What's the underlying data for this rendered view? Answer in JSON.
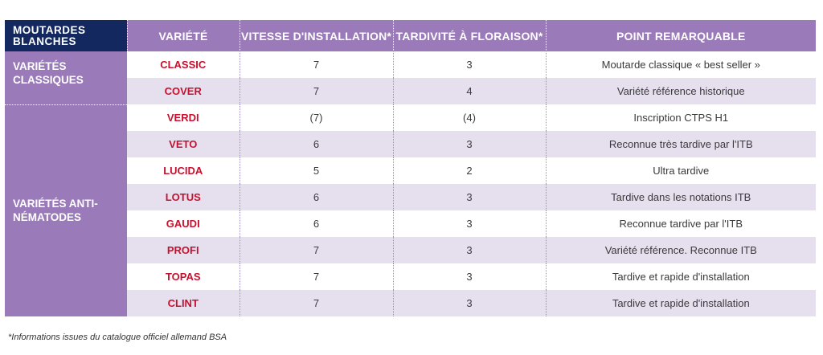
{
  "table": {
    "corner_label": "MOUTARDES BLANCHES",
    "headers": [
      "VARIÉTÉ",
      "VITESSE D'INSTALLATION*",
      "TARDIVITÉ À FLORAISON*",
      "POINT REMARQUABLE"
    ],
    "groups": [
      {
        "label": "VARIÉTÉS CLASSIQUES",
        "rows": [
          {
            "variety": "CLASSIC",
            "vitesse": "7",
            "tardivite": "3",
            "point": "Moutarde classique « best seller »"
          },
          {
            "variety": "COVER",
            "vitesse": "7",
            "tardivite": "4",
            "point": "Variété référence historique"
          }
        ]
      },
      {
        "label": "VARIÉTÉS ANTI-NÉMATODES",
        "rows": [
          {
            "variety": "VERDI",
            "vitesse": "(7)",
            "tardivite": "(4)",
            "point": "Inscription CTPS H1"
          },
          {
            "variety": "VETO",
            "vitesse": "6",
            "tardivite": "3",
            "point": "Reconnue très tardive par l'ITB"
          },
          {
            "variety": "LUCIDA",
            "vitesse": "5",
            "tardivite": "2",
            "point": "Ultra tardive"
          },
          {
            "variety": "LOTUS",
            "vitesse": "6",
            "tardivite": "3",
            "point": "Tardive dans les notations ITB"
          },
          {
            "variety": "GAUDI",
            "vitesse": "6",
            "tardivite": "3",
            "point": "Reconnue tardive par l'ITB"
          },
          {
            "variety": "PROFI",
            "vitesse": "7",
            "tardivite": "3",
            "point": "Variété référence. Reconnue ITB"
          },
          {
            "variety": "TOPAS",
            "vitesse": "7",
            "tardivite": "3",
            "point": "Tardive et rapide d'installation"
          },
          {
            "variety": "CLINT",
            "vitesse": "7",
            "tardivite": "3",
            "point": "Tardive et rapide d'installation"
          }
        ]
      }
    ]
  },
  "footnote": "*Informations issues du catalogue officiel allemand BSA",
  "colors": {
    "corner_bg": "#12285e",
    "header_bg": "#9a7ab8",
    "variety_text": "#c8102e",
    "row_alt_bg": "#e6e0ee"
  }
}
